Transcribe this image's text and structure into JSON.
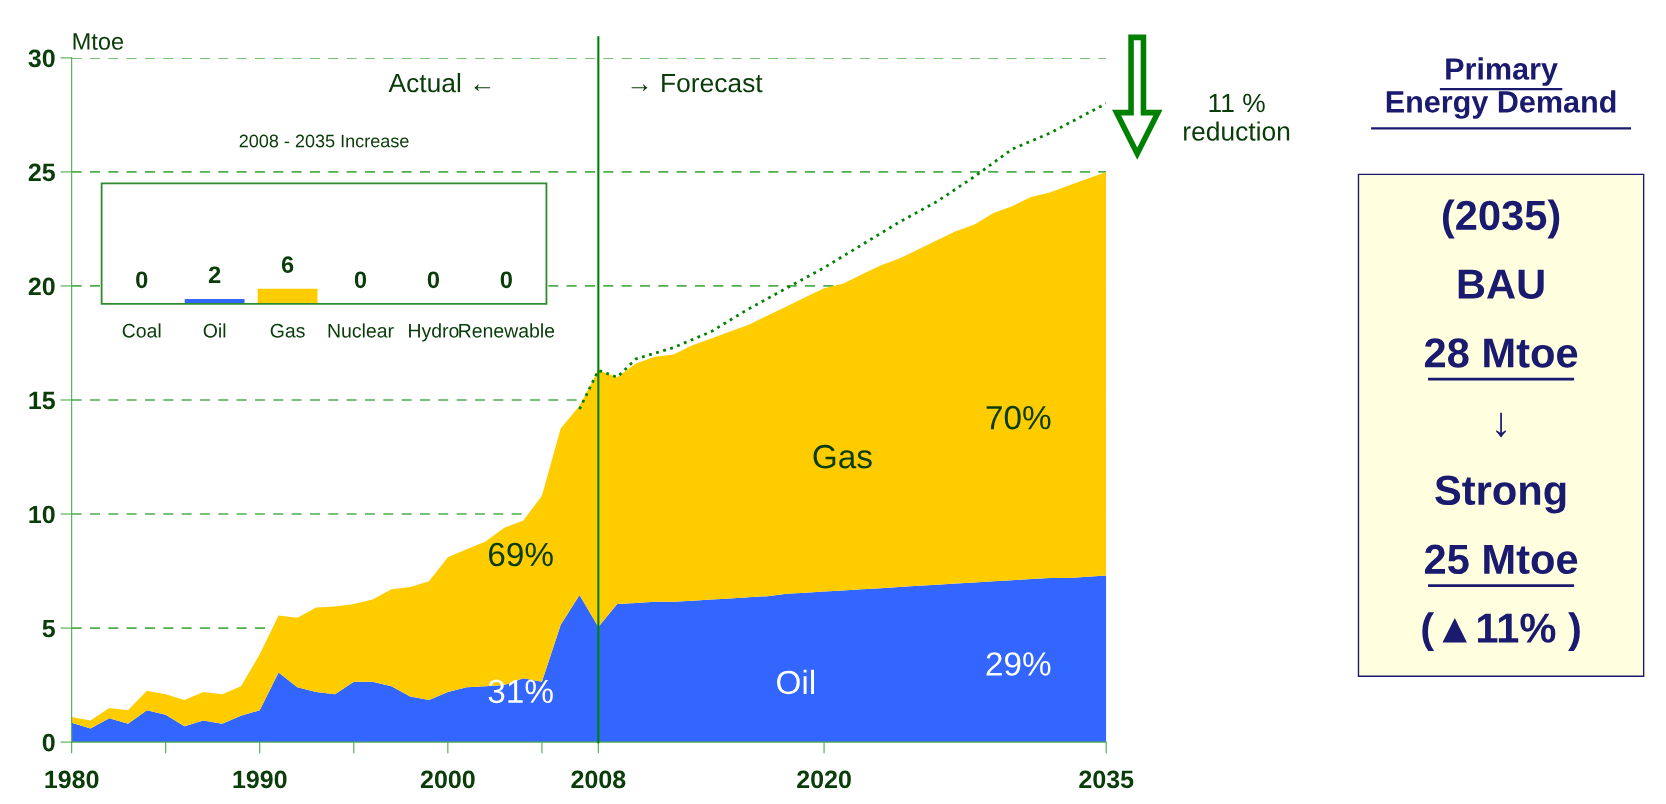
{
  "chart_data": [
    {
      "type": "area",
      "stacked": true,
      "ylabel": "Mtoe",
      "x": [
        1980,
        1981,
        1982,
        1983,
        1984,
        1985,
        1986,
        1987,
        1988,
        1989,
        1990,
        1991,
        1992,
        1993,
        1994,
        1995,
        1996,
        1997,
        1998,
        1999,
        2000,
        2001,
        2002,
        2003,
        2004,
        2005,
        2006,
        2007,
        2008,
        2009,
        2010,
        2011,
        2012,
        2013,
        2014,
        2015,
        2016,
        2017,
        2018,
        2019,
        2020,
        2021,
        2022,
        2023,
        2024,
        2025,
        2026,
        2027,
        2028,
        2029,
        2030,
        2031,
        2032,
        2033,
        2034,
        2035
      ],
      "series": [
        {
          "color": "#3366ff",
          "values": [
            0.85,
            0.6,
            1.05,
            0.8,
            1.4,
            1.2,
            0.7,
            0.95,
            0.8,
            1.15,
            1.4,
            3.05,
            2.4,
            2.2,
            2.1,
            2.65,
            2.65,
            2.45,
            2.0,
            1.85,
            2.2,
            2.4,
            2.45,
            2.5,
            2.8,
            2.65,
            5.15,
            6.45,
            5.05,
            6.05,
            6.1,
            6.15,
            6.15,
            6.2,
            6.25,
            6.3,
            6.35,
            6.4,
            6.5,
            6.55,
            6.6,
            6.65,
            6.7,
            6.75,
            6.8,
            6.85,
            6.9,
            6.95,
            7.0,
            7.05,
            7.1,
            7.15,
            7.2,
            7.2,
            7.25,
            7.3
          ]
        },
        {
          "color": "#ffcc00",
          "values": [
            0.25,
            0.35,
            0.45,
            0.6,
            0.85,
            0.9,
            1.15,
            1.25,
            1.3,
            1.3,
            2.45,
            2.5,
            3.05,
            3.7,
            3.85,
            3.4,
            3.6,
            4.25,
            4.8,
            5.2,
            5.9,
            6.05,
            6.35,
            6.9,
            6.9,
            8.15,
            8.6,
            8.3,
            11.25,
            9.95,
            10.5,
            10.75,
            10.85,
            11.2,
            11.45,
            11.7,
            11.95,
            12.3,
            12.6,
            12.95,
            13.3,
            13.45,
            13.8,
            14.15,
            14.4,
            14.75,
            15.1,
            15.45,
            15.7,
            16.15,
            16.4,
            16.75,
            16.9,
            17.2,
            17.45,
            17.7
          ]
        },
        {
          "type": "line",
          "line_style": "dotted",
          "color": "#008000",
          "x": [
            2007,
            2008,
            2009,
            2010,
            2012,
            2014,
            2016,
            2018,
            2020,
            2022,
            2024,
            2026,
            2028,
            2030,
            2032,
            2035
          ],
          "values": [
            14.6,
            16.3,
            16.0,
            16.8,
            17.3,
            18.0,
            19.0,
            19.9,
            20.8,
            21.8,
            22.8,
            23.7,
            24.8,
            26.0,
            26.7,
            28.0
          ]
        }
      ],
      "xlim": [
        1980,
        2035
      ],
      "xticks": [
        1980,
        {
          "value": 1985,
          "label": null
        },
        1990,
        {
          "value": 1995,
          "label": null
        },
        2000,
        {
          "value": 2005,
          "label": null
        },
        2008,
        2020,
        2035
      ],
      "ylim": [
        0,
        30
      ],
      "yticks": [
        0,
        5,
        10,
        15,
        20,
        25,
        30
      ],
      "grid": "y",
      "legend": false,
      "ref_lines": [
        {
          "axis": "x",
          "value": 2008,
          "color": "#008000"
        }
      ],
      "annotations": [
        "Actual ←",
        "→ Forecast",
        "11 %\nreduction",
        "Gas",
        "Oil",
        "69%",
        "31%",
        "70%",
        "29%"
      ]
    },
    {
      "type": "bar",
      "title": "2008 - 2035 Increase",
      "categories": [
        "Coal",
        "Oil",
        "Gas",
        "Nuclear",
        "Hydro",
        "Renewable"
      ],
      "values": [
        0,
        2,
        6,
        0,
        0,
        0
      ],
      "colors": [
        "#3366ff",
        "#3366ff",
        "#ffcc00",
        "#3366ff",
        "#3366ff",
        "#3366ff"
      ],
      "data_labels": true
    },
    {
      "type": "other",
      "title": "Primary\nEnergy Demand",
      "annotations": [
        "(2035)",
        "BAU",
        "28 Mtoe",
        "↓",
        "Strong",
        "25 Mtoe",
        "(▲11% )"
      ]
    }
  ]
}
